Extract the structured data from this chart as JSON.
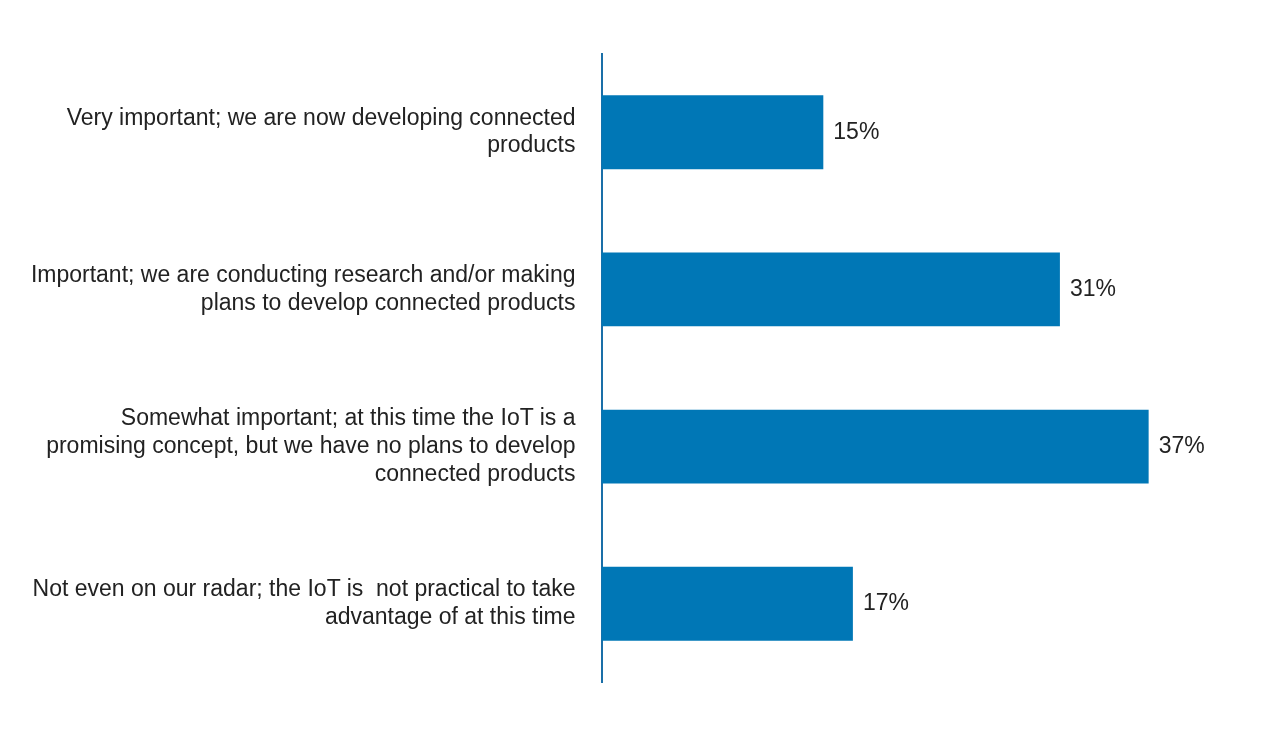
{
  "chart_data": {
    "type": "bar",
    "orientation": "horizontal",
    "categories": [
      "Very important; we are now developing connected products",
      "Important; we are conducting research and/or making plans to develop connected products",
      "Somewhat important; at this time the IoT is a promising concept, but we have no plans to develop connected products",
      "Not even on our radar; the IoT is  not practical to take advantage of at this time"
    ],
    "values": [
      15,
      31,
      37,
      17
    ],
    "value_labels": [
      "15%",
      "31%",
      "37%",
      "17%"
    ],
    "color": "#0077b6"
  }
}
